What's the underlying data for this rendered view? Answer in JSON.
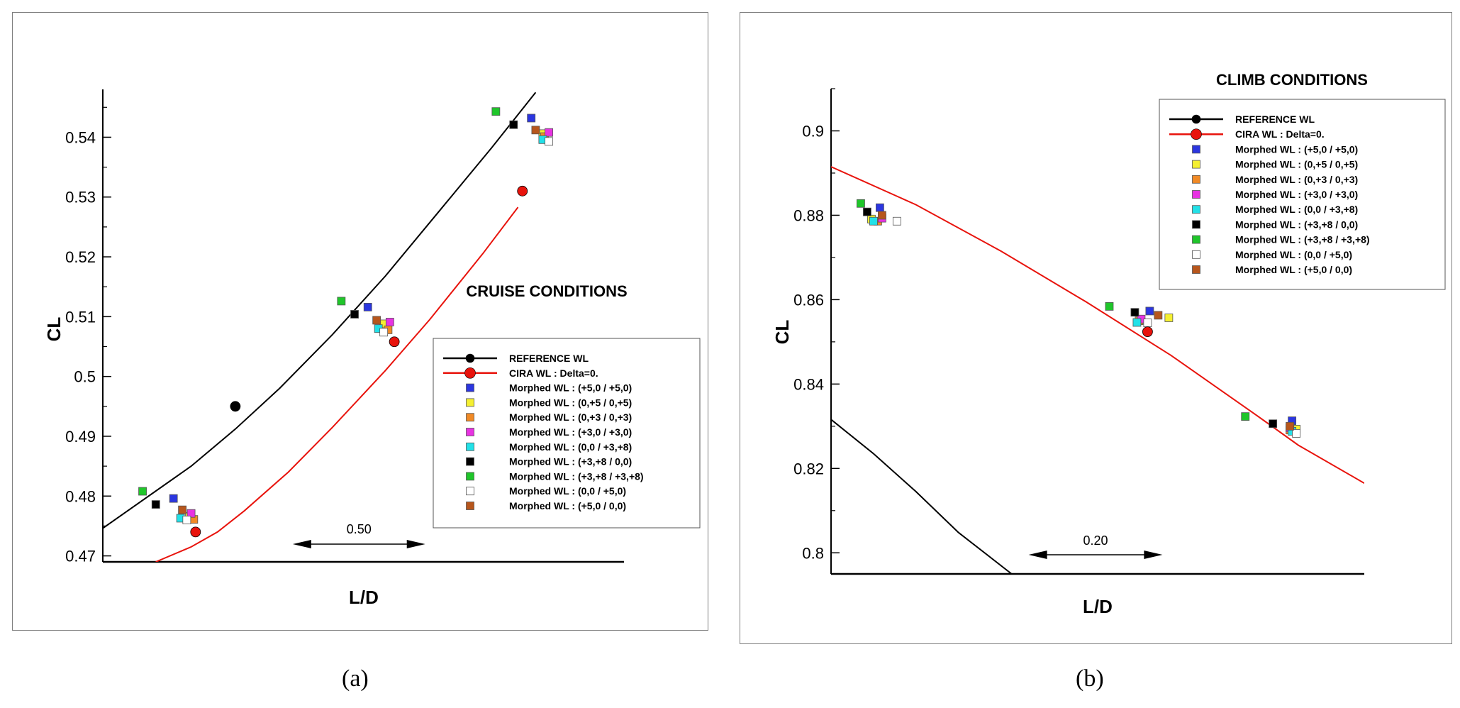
{
  "captions": {
    "a": "(a)",
    "b": "(b)"
  },
  "legend_labels": [
    "REFERENCE WL",
    "CIRA WL : Delta=0.",
    "Morphed WL : (+5,0 / +5,0)",
    "Morphed WL : (0,+5 / 0,+5)",
    "Morphed WL : (0,+3 / 0,+3)",
    "Morphed WL : (+3,0 / +3,0)",
    "Morphed WL : (0,0 / +3,+8)",
    "Morphed WL : (+3,+8 / 0,0)",
    "Morphed WL : (+3,+8 / +3,+8)",
    "Morphed WL : (0,0 / +5,0)",
    "Morphed WL : (+5,0 / 0,0)"
  ],
  "colors": {
    "reference": "#000000",
    "cira": "#e8130c",
    "morphed": [
      "#2b36e0",
      "#f5f031",
      "#f18a26",
      "#e833e2",
      "#22e1e8",
      "#000000",
      "#1fc62a",
      "#ffffff",
      "#b7561c"
    ]
  },
  "chart_data": [
    {
      "type": "scatter",
      "title": "CRUISE CONDITIONS",
      "xlabel": "L/D",
      "ylabel": "CL",
      "ylim": [
        0.469,
        0.548
      ],
      "xlim": [
        0,
        5.9
      ],
      "yticks": [
        0.47,
        0.48,
        0.49,
        0.5,
        0.51,
        0.52,
        0.53,
        0.54
      ],
      "ytick_labels": [
        "0.47",
        "0.48",
        "0.49",
        "0.5",
        "0.51",
        "0.52",
        "0.53",
        "0.54"
      ],
      "scale_bar": {
        "label": "0.50",
        "from": 2.15,
        "to": 3.65
      },
      "legend_position": "bottom-right",
      "series": [
        {
          "name": "REFERENCE WL",
          "kind": "line",
          "color": "#000000",
          "x": [
            -0.3,
            1.0,
            1.5,
            2.0,
            2.6,
            3.2,
            3.8,
            4.4,
            4.9
          ],
          "y": [
            0.4715,
            0.485,
            0.4912,
            0.498,
            0.507,
            0.5168,
            0.5275,
            0.5382,
            0.5475
          ],
          "markers": [
            {
              "x": 1.5,
              "y": 0.495
            }
          ]
        },
        {
          "name": "CIRA WL : Delta=0.",
          "kind": "line",
          "color": "#e8130c",
          "x": [
            0.6,
            1.0,
            1.3,
            1.6,
            2.1,
            2.6,
            3.2,
            3.7,
            4.3,
            4.7
          ],
          "y": [
            0.469,
            0.4715,
            0.474,
            0.4775,
            0.484,
            0.4915,
            0.501,
            0.5095,
            0.5205,
            0.5283
          ],
          "markers": [
            {
              "x": 1.05,
              "y": 0.474
            },
            {
              "x": 3.3,
              "y": 0.5058
            },
            {
              "x": 4.75,
              "y": 0.531
            }
          ]
        },
        {
          "name": "Morphed WL : (+5,0 / +5,0)",
          "color": "#2b36e0",
          "x": [
            0.8,
            3.0,
            4.85
          ],
          "y": [
            0.4796,
            0.5116,
            0.5432
          ]
        },
        {
          "name": "Morphed WL : (0,+5 / 0,+5)",
          "color": "#f5f031",
          "x": [
            0.98,
            3.18,
            4.98
          ],
          "y": [
            0.4766,
            0.5088,
            0.5406
          ]
        },
        {
          "name": "Morphed WL : (0,+3 / 0,+3)",
          "color": "#f18a26",
          "x": [
            1.03,
            3.23,
            5.0
          ],
          "y": [
            0.4761,
            0.5078,
            0.5401
          ]
        },
        {
          "name": "Morphed WL : (+3,0 / +3,0)",
          "color": "#e833e2",
          "x": [
            1.0,
            3.25,
            5.05
          ],
          "y": [
            0.4771,
            0.5091,
            0.5408
          ]
        },
        {
          "name": "Morphed WL : (0,0 / +3,+8)",
          "color": "#22e1e8",
          "x": [
            0.88,
            3.12,
            4.98
          ],
          "y": [
            0.4763,
            0.508,
            0.5396
          ]
        },
        {
          "name": "Morphed WL : (+3,+8 / 0,0)",
          "color": "#000000",
          "x": [
            0.6,
            2.85,
            4.65
          ],
          "y": [
            0.4786,
            0.5104,
            0.5421
          ]
        },
        {
          "name": "Morphed WL : (+3,+8 / +3,+8)",
          "color": "#1fc62a",
          "x": [
            0.45,
            2.7,
            4.45
          ],
          "y": [
            0.4808,
            0.5126,
            0.5443
          ]
        },
        {
          "name": "Morphed WL : (0,0 / +5,0)",
          "color": "#ffffff",
          "x": [
            0.95,
            3.18,
            5.05
          ],
          "y": [
            0.476,
            0.5074,
            0.5393
          ]
        },
        {
          "name": "Morphed WL : (+5,0 / 0,0)",
          "color": "#b7561c",
          "x": [
            0.9,
            3.1,
            4.9
          ],
          "y": [
            0.4777,
            0.5094,
            0.5412
          ]
        }
      ]
    },
    {
      "type": "scatter",
      "title": "CLIMB CONDITIONS",
      "xlabel": "L/D",
      "ylabel": "CL",
      "ylim": [
        0.795,
        0.91
      ],
      "xlim": [
        0,
        2.51
      ],
      "yticks": [
        0.8,
        0.82,
        0.84,
        0.86,
        0.88,
        0.9
      ],
      "ytick_labels": [
        "0.8",
        "0.82",
        "0.84",
        "0.86",
        "0.88",
        "0.9"
      ],
      "scale_bar": {
        "label": "0.20",
        "from": 0.93,
        "to": 1.56
      },
      "legend_position": "top-right",
      "series": [
        {
          "name": "REFERENCE WL",
          "kind": "line",
          "color": "#000000",
          "x": [
            0,
            0.2,
            0.4,
            0.6,
            0.85
          ],
          "y": [
            0.8316,
            0.8235,
            0.8145,
            0.8048,
            0.795
          ],
          "markers": []
        },
        {
          "name": "CIRA WL : Delta=0.",
          "kind": "line",
          "color": "#e8130c",
          "x": [
            0,
            0.4,
            0.8,
            1.2,
            1.6,
            2.0,
            2.2,
            2.51
          ],
          "y": [
            0.8915,
            0.8825,
            0.8715,
            0.8595,
            0.8468,
            0.8327,
            0.8255,
            0.8165
          ],
          "markers": [
            {
              "x": 1.49,
              "y": 0.8524
            }
          ]
        },
        {
          "name": "Morphed WL : (+5,0 / +5,0)",
          "color": "#2b36e0",
          "x": [
            0.23,
            1.5,
            2.17
          ],
          "y": [
            0.8818,
            0.8573,
            0.8313
          ]
        },
        {
          "name": "Morphed WL : (0,+5 / 0,+5)",
          "color": "#f5f031",
          "x": [
            0.19,
            1.59,
            2.19
          ],
          "y": [
            0.8791,
            0.8557,
            0.8293
          ]
        },
        {
          "name": "Morphed WL : (0,+3 / 0,+3)",
          "color": "#f18a26",
          "x": [
            0.22,
            1.45,
            2.16
          ],
          "y": [
            0.8786,
            0.855,
            0.8291
          ]
        },
        {
          "name": "Morphed WL : (+3,0 / +3,0)",
          "color": "#e833e2",
          "x": [
            0.24,
            1.46,
            2.16
          ],
          "y": [
            0.8793,
            0.8554,
            0.8296
          ]
        },
        {
          "name": "Morphed WL : (0,0 / +3,+8)",
          "color": "#22e1e8",
          "x": [
            0.2,
            1.44,
            2.17
          ],
          "y": [
            0.8786,
            0.8546,
            0.8288
          ]
        },
        {
          "name": "Morphed WL : (+3,+8 / 0,0)",
          "color": "#000000",
          "x": [
            0.17,
            1.43,
            2.08
          ],
          "y": [
            0.8808,
            0.857,
            0.8306
          ]
        },
        {
          "name": "Morphed WL : (+3,+8 / +3,+8)",
          "color": "#1fc62a",
          "x": [
            0.14,
            1.31,
            1.95
          ],
          "y": [
            0.8828,
            0.8584,
            0.8323
          ]
        },
        {
          "name": "Morphed WL : (0,0 / +5,0)",
          "color": "#ffffff",
          "x": [
            0.31,
            1.49,
            2.19
          ],
          "y": [
            0.8786,
            0.8545,
            0.8283
          ]
        },
        {
          "name": "Morphed WL : (+5,0 / 0,0)",
          "color": "#b7561c",
          "x": [
            0.24,
            1.54,
            2.16
          ],
          "y": [
            0.88,
            0.8563,
            0.83
          ]
        }
      ]
    }
  ]
}
